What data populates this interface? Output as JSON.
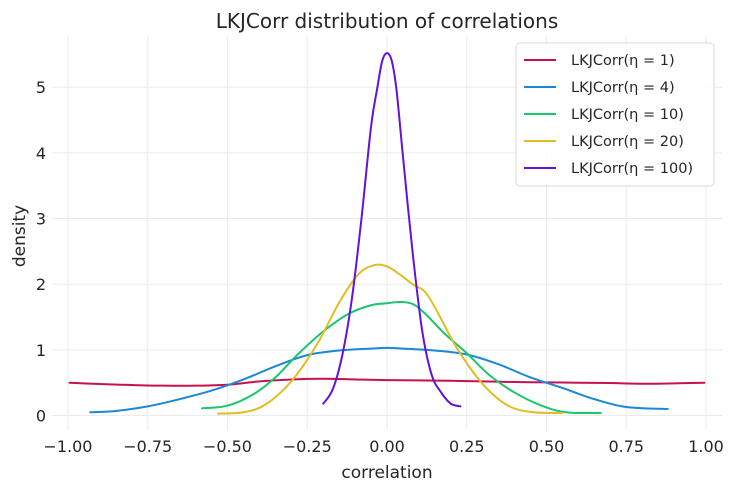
{
  "chart_data": {
    "type": "line",
    "title": "LKJCorr distribution of correlations",
    "xlabel": "correlation",
    "ylabel": "density",
    "xlim": [
      -1.05,
      1.05
    ],
    "ylim": [
      -0.22,
      5.78
    ],
    "grid": true,
    "legend_position": "top-right",
    "x_ticks": [
      -1.0,
      -0.75,
      -0.5,
      -0.25,
      0.0,
      0.25,
      0.5,
      0.75,
      1.0
    ],
    "x_tick_labels": [
      "−1.00",
      "−0.75",
      "−0.50",
      "−0.25",
      "0.00",
      "0.25",
      "0.50",
      "0.75",
      "1.00"
    ],
    "y_ticks": [
      0,
      1,
      2,
      3,
      4,
      5
    ],
    "y_tick_labels": [
      "0",
      "1",
      "2",
      "3",
      "4",
      "5"
    ],
    "series": [
      {
        "name": "LKJCorr(η = 1)",
        "color": "#c8104f",
        "x": [
          -0.995,
          -0.9,
          -0.8,
          -0.7,
          -0.6,
          -0.5,
          -0.4,
          -0.3,
          -0.2,
          -0.1,
          0.0,
          0.1,
          0.2,
          0.3,
          0.4,
          0.5,
          0.6,
          0.7,
          0.8,
          0.9,
          0.995
        ],
        "y": [
          0.5,
          0.48,
          0.465,
          0.455,
          0.455,
          0.47,
          0.52,
          0.55,
          0.56,
          0.55,
          0.54,
          0.535,
          0.53,
          0.52,
          0.51,
          0.505,
          0.5,
          0.495,
          0.485,
          0.49,
          0.5
        ]
      },
      {
        "name": "LKJCorr(η = 4)",
        "color": "#1b87d9",
        "x": [
          -0.93,
          -0.85,
          -0.75,
          -0.65,
          -0.55,
          -0.45,
          -0.35,
          -0.25,
          -0.15,
          -0.05,
          0.0,
          0.05,
          0.15,
          0.25,
          0.35,
          0.45,
          0.55,
          0.65,
          0.75,
          0.88
        ],
        "y": [
          0.05,
          0.07,
          0.14,
          0.25,
          0.38,
          0.55,
          0.75,
          0.92,
          0.99,
          1.02,
          1.03,
          1.02,
          0.99,
          0.93,
          0.78,
          0.58,
          0.42,
          0.25,
          0.13,
          0.1
        ]
      },
      {
        "name": "LKJCorr(η = 10)",
        "color": "#17c86b",
        "x": [
          -0.58,
          -0.5,
          -0.42,
          -0.35,
          -0.28,
          -0.2,
          -0.12,
          -0.05,
          0.0,
          0.04,
          0.08,
          0.12,
          0.18,
          0.25,
          0.32,
          0.4,
          0.48,
          0.56,
          0.67
        ],
        "y": [
          0.11,
          0.15,
          0.32,
          0.58,
          0.93,
          1.28,
          1.55,
          1.68,
          1.71,
          1.73,
          1.7,
          1.55,
          1.25,
          0.95,
          0.62,
          0.35,
          0.16,
          0.05,
          0.04
        ]
      },
      {
        "name": "LKJCorr(η = 20)",
        "color": "#e0bd23",
        "x": [
          -0.53,
          -0.45,
          -0.38,
          -0.3,
          -0.22,
          -0.15,
          -0.09,
          -0.04,
          0.0,
          0.04,
          0.08,
          0.12,
          0.16,
          0.22,
          0.3,
          0.38,
          0.46,
          0.55
        ],
        "y": [
          0.03,
          0.05,
          0.17,
          0.52,
          1.08,
          1.72,
          2.15,
          2.29,
          2.27,
          2.15,
          2.0,
          1.88,
          1.56,
          1.02,
          0.48,
          0.15,
          0.05,
          0.04
        ]
      },
      {
        "name": "LKJCorr(η = 100)",
        "color": "#6412d8",
        "x": [
          -0.2,
          -0.17,
          -0.14,
          -0.11,
          -0.08,
          -0.05,
          -0.03,
          -0.015,
          0.0,
          0.015,
          0.03,
          0.05,
          0.08,
          0.11,
          0.14,
          0.17,
          0.2,
          0.23
        ],
        "y": [
          0.18,
          0.4,
          0.92,
          1.78,
          3.0,
          4.4,
          5.0,
          5.4,
          5.52,
          5.4,
          4.95,
          3.95,
          2.5,
          1.3,
          0.62,
          0.35,
          0.18,
          0.14
        ]
      }
    ]
  }
}
